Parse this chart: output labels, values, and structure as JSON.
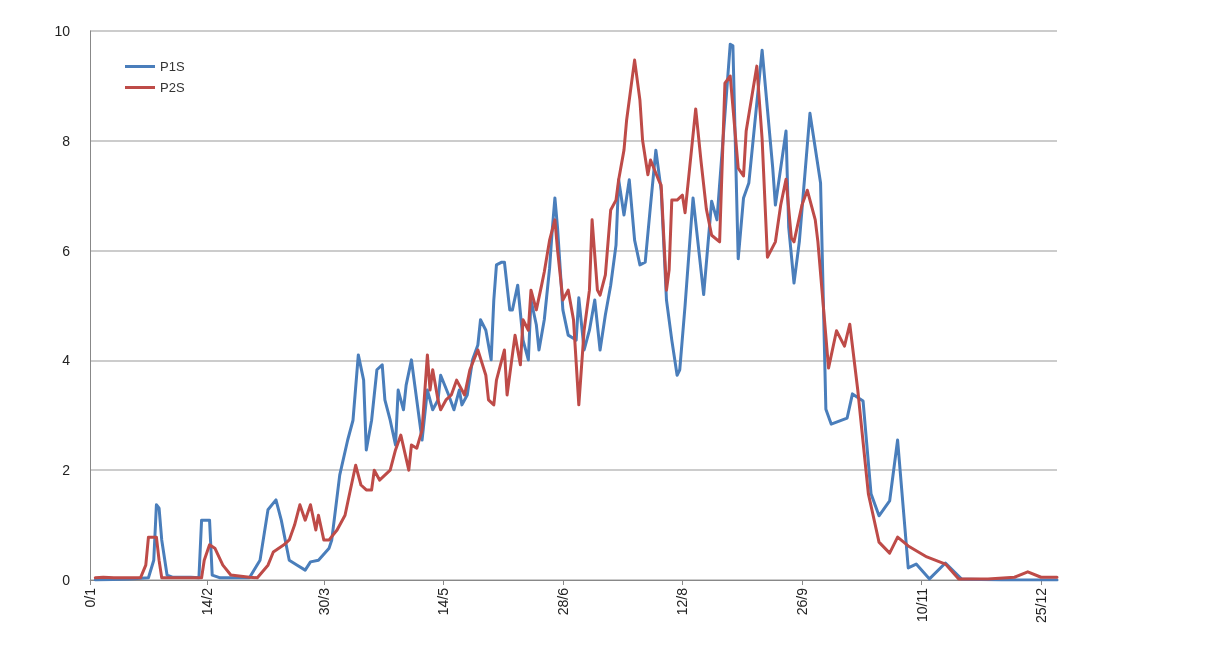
{
  "chart_data": {
    "type": "line",
    "xlim": [
      "--01-01",
      "--12-31"
    ],
    "xticks": [
      {
        "value": "--01-01",
        "label": "0/1"
      },
      {
        "value": "--02-14",
        "label": "14/2"
      },
      {
        "value": "--03-30",
        "label": "30/3"
      },
      {
        "value": "--05-14",
        "label": "14/5"
      },
      {
        "value": "--06-28",
        "label": "28/6"
      },
      {
        "value": "--08-12",
        "label": "12/8"
      },
      {
        "value": "--09-26",
        "label": "26/9"
      },
      {
        "value": "--11-10",
        "label": "10/11"
      },
      {
        "value": "--12-25",
        "label": "25/12"
      }
    ],
    "ylim": [
      0,
      10
    ],
    "yticks": [
      0,
      2,
      4,
      6,
      8,
      10
    ],
    "grid": "y",
    "legend": "top left",
    "marker": "none",
    "line_style": "solid",
    "series": [
      {
        "name": "P1S",
        "color": "#4a7ebb",
        "x": [
          "--01-03",
          "--01-16",
          "--01-23",
          "--01-25",
          "--01-26",
          "--01-27",
          "--01-28",
          "--01-30",
          "--02-01",
          "--02-08",
          "--02-11",
          "--02-12",
          "--02-15",
          "--02-16",
          "--02-19",
          "--03-02",
          "--03-06",
          "--03-09",
          "--03-12",
          "--03-14",
          "--03-17",
          "--03-20",
          "--03-23",
          "--03-25",
          "--03-28",
          "--04-01",
          "--04-02",
          "--04-05",
          "--04-08",
          "--04-10",
          "--04-12",
          "--04-14",
          "--04-15",
          "--04-17",
          "--04-19",
          "--04-21",
          "--04-22",
          "--04-24",
          "--04-26",
          "--04-27",
          "--04-29",
          "--04-30",
          "--05-02",
          "--05-03",
          "--05-06",
          "--05-08",
          "--05-10",
          "--05-12",
          "--05-13",
          "--05-16",
          "--05-18",
          "--05-20",
          "--05-21",
          "--05-23",
          "--05-25",
          "--05-27",
          "--05-28",
          "--05-30",
          "--06-01",
          "--06-02",
          "--06-03",
          "--06-05",
          "--06-06",
          "--06-08",
          "--06-09",
          "--06-11",
          "--06-13",
          "--06-15",
          "--06-16",
          "--06-18",
          "--06-19",
          "--06-21",
          "--06-23",
          "--06-24",
          "--06-25",
          "--06-26",
          "--06-28",
          "--06-30",
          "--07-03",
          "--07-04",
          "--07-06",
          "--07-08",
          "--07-10",
          "--07-12",
          "--07-14",
          "--07-16",
          "--07-18",
          "--07-19",
          "--07-21",
          "--07-23",
          "--07-25",
          "--07-27",
          "--07-29",
          "--07-31",
          "--08-02",
          "--08-04",
          "--08-06",
          "--08-08",
          "--08-10",
          "--08-11",
          "--08-13",
          "--08-16",
          "--08-20",
          "--08-23",
          "--08-25",
          "--08-30",
          "--08-31",
          "--09-02",
          "--09-04",
          "--09-06",
          "--09-11",
          "--09-15",
          "--09-16",
          "--09-20",
          "--09-21",
          "--09-23",
          "--09-25",
          "--09-29",
          "--10-03",
          "--10-05",
          "--10-07",
          "--10-13",
          "--10-15",
          "--10-19",
          "--10-22",
          "--10-25",
          "--10-29",
          "--11-01",
          "--11-05",
          "--11-08",
          "--11-13",
          "--11-19",
          "--11-25",
          "--12-10",
          "--12-31"
        ],
        "values": [
          0,
          0.02,
          0.04,
          0.36,
          1.37,
          1.31,
          0.73,
          0.09,
          0.05,
          0.05,
          0.04,
          1.09,
          1.09,
          0.09,
          0.04,
          0.04,
          0.36,
          1.28,
          1.46,
          1.09,
          0.36,
          0.27,
          0.18,
          0.33,
          0.36,
          0.58,
          0.73,
          1.91,
          2.55,
          2.91,
          4.1,
          3.64,
          2.37,
          2.91,
          3.83,
          3.92,
          3.28,
          2.91,
          2.46,
          3.46,
          3.1,
          3.55,
          4.01,
          3.64,
          2.55,
          3.46,
          3.1,
          3.28,
          3.73,
          3.37,
          3.1,
          3.46,
          3.19,
          3.37,
          4.01,
          4.28,
          4.74,
          4.55,
          4.01,
          5.1,
          5.74,
          5.79,
          5.79,
          4.92,
          4.92,
          5.37,
          4.37,
          4.01,
          5.1,
          4.65,
          4.19,
          4.74,
          5.68,
          6.38,
          6.96,
          6.41,
          4.92,
          4.46,
          4.37,
          5.14,
          4.19,
          4.55,
          5.1,
          4.19,
          4.83,
          5.37,
          6.1,
          7.29,
          6.65,
          7.29,
          6.19,
          5.74,
          5.79,
          6.83,
          7.83,
          7.1,
          5.1,
          4.37,
          3.73,
          3.83,
          5.0,
          6.96,
          5.2,
          6.9,
          6.56,
          9.76,
          9.73,
          5.85,
          6.96,
          7.23,
          9.65,
          7.5,
          6.83,
          8.18,
          6.43,
          5.41,
          6.16,
          8.5,
          7.23,
          3.11,
          2.84,
          2.95,
          3.39,
          3.26,
          1.57,
          1.17,
          1.44,
          2.55,
          0.22,
          0.29,
          0.02,
          0.31,
          0.02,
          0,
          0
        ]
      },
      {
        "name": "P2S",
        "color": "#be4b48",
        "x": [
          "--01-03",
          "--01-06",
          "--01-10",
          "--01-20",
          "--01-22",
          "--01-23",
          "--01-26",
          "--01-27",
          "--01-28",
          "--02-12",
          "--02-13",
          "--02-15",
          "--02-17",
          "--02-20",
          "--02-23",
          "--03-02",
          "--03-05",
          "--03-09",
          "--03-11",
          "--03-15",
          "--03-17",
          "--03-19",
          "--03-21",
          "--03-23",
          "--03-25",
          "--03-27",
          "--03-28",
          "--03-30",
          "--04-01",
          "--04-04",
          "--04-07",
          "--04-09",
          "--04-11",
          "--04-13",
          "--04-15",
          "--04-17",
          "--04-18",
          "--04-20",
          "--04-22",
          "--04-24",
          "--04-26",
          "--04-28",
          "--05-01",
          "--05-02",
          "--05-04",
          "--05-06",
          "--05-08",
          "--05-09",
          "--05-10",
          "--05-12",
          "--05-13",
          "--05-15",
          "--05-17",
          "--05-19",
          "--05-22",
          "--05-24",
          "--05-27",
          "--05-30",
          "--05-31",
          "--06-02",
          "--06-03",
          "--06-06",
          "--06-07",
          "--06-09",
          "--06-10",
          "--06-12",
          "--06-13",
          "--06-15",
          "--06-16",
          "--06-18",
          "--06-20",
          "--06-21",
          "--06-23",
          "--06-25",
          "--06-26",
          "--06-28",
          "--06-30",
          "--07-02",
          "--07-04",
          "--07-06",
          "--07-08",
          "--07-09",
          "--07-11",
          "--07-12",
          "--07-14",
          "--07-16",
          "--07-18",
          "--07-19",
          "--07-21",
          "--07-22",
          "--07-24",
          "--07-25",
          "--07-27",
          "--07-28",
          "--07-30",
          "--07-31",
          "--08-03",
          "--08-04",
          "--08-06",
          "--08-07",
          "--08-08",
          "--08-10",
          "--08-12",
          "--08-13",
          "--08-17",
          "--08-19",
          "--08-21",
          "--08-23",
          "--08-26",
          "--08-28",
          "--08-30",
          "--09-02",
          "--09-04",
          "--09-05",
          "--09-09",
          "--09-11",
          "--09-13",
          "--09-16",
          "--09-18",
          "--09-20",
          "--09-22",
          "--09-23",
          "--09-26",
          "--09-28",
          "--10-01",
          "--10-02",
          "--10-06",
          "--10-09",
          "--10-12",
          "--10-14",
          "--10-17",
          "--10-21",
          "--10-25",
          "--10-29",
          "--11-01",
          "--11-05",
          "--11-12",
          "--11-19",
          "--11-24",
          "--12-05",
          "--12-15",
          "--12-20",
          "--12-25",
          "--12-31"
        ],
        "values": [
          0.04,
          0.05,
          0.04,
          0.04,
          0.27,
          0.78,
          0.78,
          0.36,
          0.04,
          0.04,
          0.36,
          0.64,
          0.58,
          0.27,
          0.09,
          0.05,
          0.04,
          0.27,
          0.51,
          0.64,
          0.73,
          1.0,
          1.37,
          1.09,
          1.37,
          0.91,
          1.18,
          0.73,
          0.73,
          0.91,
          1.18,
          1.64,
          2.09,
          1.73,
          1.64,
          1.64,
          2.0,
          1.82,
          1.91,
          2.0,
          2.37,
          2.64,
          2.0,
          2.46,
          2.4,
          2.73,
          4.1,
          3.46,
          3.83,
          3.28,
          3.1,
          3.28,
          3.37,
          3.64,
          3.37,
          3.83,
          4.19,
          3.73,
          3.28,
          3.19,
          3.64,
          4.19,
          3.37,
          4.1,
          4.46,
          3.92,
          4.74,
          4.55,
          5.28,
          4.92,
          5.37,
          5.61,
          6.19,
          6.56,
          6.01,
          5.1,
          5.28,
          4.74,
          3.19,
          4.55,
          5.28,
          6.56,
          5.28,
          5.19,
          5.56,
          6.74,
          6.92,
          7.29,
          7.83,
          8.38,
          9.11,
          9.47,
          8.74,
          8.01,
          7.38,
          7.65,
          7.29,
          7.19,
          5.28,
          5.65,
          6.92,
          6.92,
          7.01,
          6.69,
          8.58,
          7.63,
          6.76,
          6.28,
          6.16,
          9.05,
          9.18,
          7.5,
          7.36,
          8.18,
          9.36,
          8.03,
          5.88,
          6.16,
          6.83,
          7.3,
          6.23,
          6.16,
          6.83,
          7.1,
          6.56,
          6.16,
          3.86,
          4.54,
          4.26,
          4.66,
          3.46,
          1.57,
          0.69,
          0.49,
          0.78,
          0.62,
          0.42,
          0.29,
          0.02,
          0.02,
          0.05,
          0.15,
          0.05,
          0.05
        ]
      }
    ]
  }
}
